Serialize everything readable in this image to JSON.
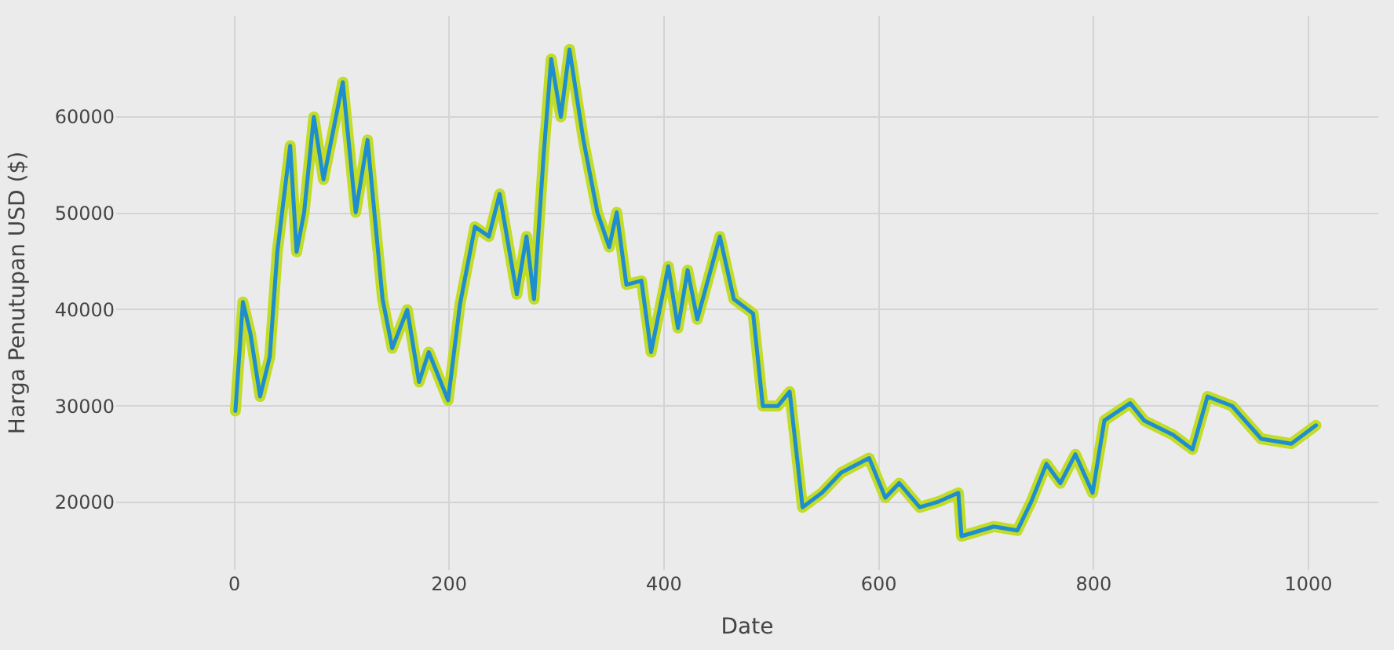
{
  "chart_data": {
    "type": "line",
    "xlabel": "Date",
    "ylabel": "Harga Penutupan USD ($)",
    "x": [
      1,
      8,
      15,
      24,
      33,
      40,
      52,
      58,
      65,
      74,
      83,
      93,
      101,
      113,
      124,
      138,
      147,
      161,
      172,
      181,
      199,
      210,
      224,
      237,
      247,
      263,
      272,
      279,
      288,
      295,
      304,
      312,
      325,
      338,
      349,
      356,
      365,
      379,
      388,
      404,
      413,
      422,
      431,
      452,
      465,
      483,
      492,
      506,
      517,
      529,
      547,
      565,
      591,
      606,
      619,
      638,
      656,
      674,
      677,
      707,
      729,
      742,
      756,
      769,
      783,
      799,
      810,
      834,
      847,
      874,
      892,
      906,
      929,
      956,
      984,
      1007
    ],
    "series": [
      {
        "color": "#c2dc28",
        "values": [
          29500,
          40800,
          37500,
          31000,
          35100,
          46000,
          57000,
          46000,
          50100,
          60000,
          53500,
          59100,
          63600,
          50100,
          57600,
          41100,
          36000,
          40000,
          32500,
          35600,
          30600,
          40500,
          48600,
          47600,
          52000,
          41600,
          47600,
          41100,
          56100,
          66000,
          60000,
          67000,
          57600,
          50100,
          46500,
          50100,
          42600,
          43000,
          35600,
          44500,
          38100,
          44100,
          39000,
          47600,
          41100,
          39600,
          30000,
          30000,
          31500,
          19500,
          21000,
          23100,
          24600,
          20500,
          22000,
          19500,
          20100,
          21000,
          16500,
          17500,
          17100,
          20100,
          24000,
          22000,
          25000,
          21000,
          28500,
          30300,
          28500,
          27000,
          25500,
          31000,
          30000,
          26600,
          26100,
          28000
        ]
      },
      {
        "color": "#1f8ecf",
        "values": [
          29500,
          40800,
          37500,
          31000,
          35100,
          46000,
          57000,
          46000,
          50100,
          60000,
          53500,
          59100,
          63600,
          50100,
          57600,
          41100,
          36000,
          40000,
          32500,
          35600,
          30600,
          40500,
          48600,
          47600,
          52000,
          41600,
          47600,
          41100,
          56100,
          66000,
          60000,
          67000,
          57600,
          50100,
          46500,
          50100,
          42600,
          43000,
          35600,
          44500,
          38100,
          44100,
          39000,
          47600,
          41100,
          39600,
          30000,
          30000,
          31500,
          19500,
          21000,
          23100,
          24600,
          20500,
          22000,
          19500,
          20100,
          21000,
          16500,
          17500,
          17100,
          20100,
          24000,
          22000,
          25000,
          21000,
          28500,
          30300,
          28500,
          27000,
          25500,
          31000,
          30000,
          26600,
          26100,
          28000
        ]
      }
    ],
    "xlim": [
      -110,
      1065
    ],
    "ylim": [
      13000,
      70500
    ],
    "xticks": [
      0,
      200,
      400,
      600,
      800,
      1000
    ],
    "yticks": [
      20000,
      30000,
      40000,
      50000,
      60000
    ],
    "grid": true,
    "legend": false,
    "marker": "none",
    "line_style": "solid"
  }
}
